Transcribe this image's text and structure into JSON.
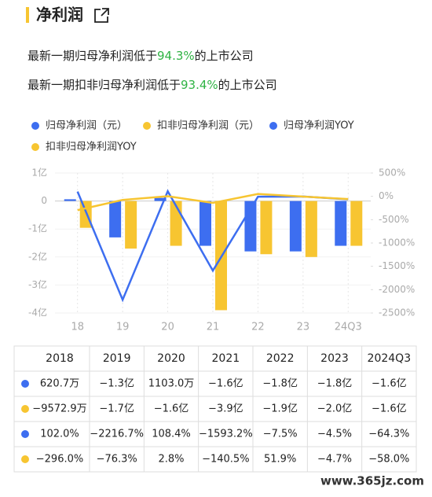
{
  "header": {
    "title": "净利润"
  },
  "summary": [
    {
      "before": "最新一期归母净利润低于",
      "highlight": "94.3%",
      "after": "的上市公司"
    },
    {
      "before": "最新一期扣非归母净利润低于",
      "highlight": "93.4%",
      "after": "的上市公司"
    }
  ],
  "chart_data": {
    "type": "bar-line",
    "categories": [
      "18",
      "19",
      "20",
      "21",
      "22",
      "23",
      "24Q3"
    ],
    "series": [
      {
        "name": "归母净利润（元）",
        "color": "#3d6ef0",
        "type": "bar",
        "values": [
          0.06207,
          -1.3,
          0.1103,
          -1.6,
          -1.8,
          -1.8,
          -1.6
        ]
      },
      {
        "name": "扣非归母净利润（元）",
        "color": "#f7c531",
        "type": "bar",
        "values": [
          -0.9573,
          -1.7,
          -1.6,
          -3.9,
          -1.9,
          -2.0,
          -1.6
        ]
      },
      {
        "name": "归母净利润YOY",
        "color": "#3d6ef0",
        "type": "line",
        "axis": "y2",
        "values": [
          102.0,
          -2216.7,
          108.4,
          -1593.2,
          -7.5,
          -4.5,
          -64.3
        ]
      },
      {
        "name": "扣非归母净利润YOY",
        "color": "#f7c531",
        "type": "line",
        "axis": "y2",
        "values": [
          -296.0,
          -76.3,
          2.8,
          -140.5,
          51.9,
          -4.7,
          -58.0
        ]
      }
    ],
    "ylim": [
      -4,
      1
    ],
    "yticks": [
      {
        "value": 1,
        "label": "1亿"
      },
      0,
      {
        "value": -1,
        "label": "-1亿"
      },
      {
        "value": -2,
        "label": "-2亿"
      },
      {
        "value": -3,
        "label": "-3亿"
      },
      {
        "value": -4,
        "label": "-4亿"
      }
    ],
    "y2lim": [
      -2500,
      500
    ],
    "y2ticks": [
      {
        "value": 500,
        "label": "500%"
      },
      {
        "value": 0,
        "label": "0%"
      },
      {
        "value": -500,
        "label": "-500%"
      },
      {
        "value": -1000,
        "label": "-1000%"
      },
      {
        "value": -1500,
        "label": "-1500%"
      },
      {
        "value": -2000,
        "label": "-2000%"
      },
      {
        "value": -2500,
        "label": "-2500%"
      }
    ],
    "grid": true
  },
  "table": {
    "header": [
      "2018",
      "2019",
      "2020",
      "2021",
      "2022",
      "2023",
      "2024Q3"
    ],
    "rows": [
      [
        "620.7万",
        "−1.3亿",
        "1103.0万",
        "−1.6亿",
        "−1.8亿",
        "−1.8亿",
        "−1.6亿"
      ],
      [
        "−9572.9万",
        "−1.7亿",
        "−1.6亿",
        "−3.9亿",
        "−1.9亿",
        "−2.0亿",
        "−1.6亿"
      ],
      [
        "102.0%",
        "−2216.7%",
        "108.4%",
        "−1593.2%",
        "−7.5%",
        "−4.5%",
        "−64.3%"
      ],
      [
        "−296.0%",
        "−76.3%",
        "2.8%",
        "−140.5%",
        "51.9%",
        "−4.7%",
        "−58.0%"
      ]
    ]
  },
  "watermark": "www.365jz.com"
}
